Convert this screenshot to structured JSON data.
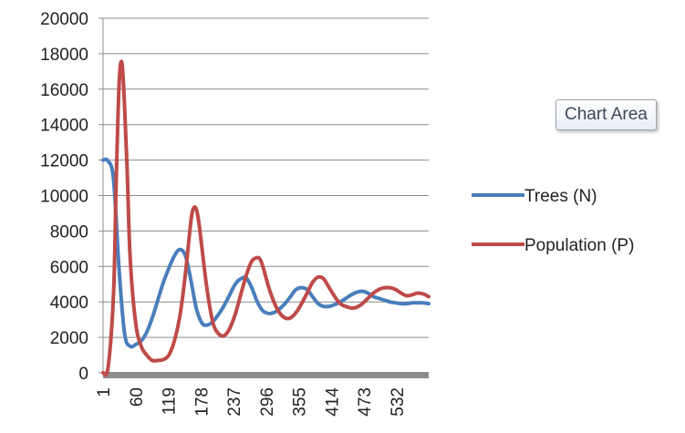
{
  "tooltip": {
    "text": "Chart Area"
  },
  "chart_data": {
    "type": "line",
    "ylim": [
      0,
      20000
    ],
    "yticks": [
      0,
      2000,
      4000,
      6000,
      8000,
      10000,
      12000,
      14000,
      16000,
      18000,
      20000
    ],
    "xticks": [
      "1",
      "60",
      "119",
      "178",
      "237",
      "296",
      "355",
      "414",
      "473",
      "532"
    ],
    "xlim": [
      1,
      590
    ],
    "grid": "horizontal",
    "legend_position": "right",
    "series": [
      {
        "name": "Trees (N)",
        "color": "#4a7ebb",
        "x": [
          1,
          10,
          20,
          30,
          40,
          50,
          60,
          70,
          80,
          90,
          100,
          110,
          120,
          130,
          140,
          150,
          160,
          170,
          180,
          190,
          200,
          210,
          220,
          230,
          240,
          250,
          260,
          270,
          280,
          290,
          300,
          310,
          320,
          330,
          340,
          350,
          360,
          370,
          380,
          390,
          400,
          410,
          420,
          430,
          440,
          450,
          460,
          470,
          480,
          490,
          500,
          510,
          520,
          530,
          540,
          550,
          560,
          570,
          580,
          590
        ],
        "values": [
          12000,
          11950,
          10900,
          5800,
          2200,
          1500,
          1600,
          1800,
          2300,
          3100,
          4100,
          5100,
          5900,
          6600,
          6950,
          6600,
          5200,
          3600,
          2800,
          2700,
          2900,
          3300,
          3800,
          4400,
          5000,
          5300,
          5350,
          4800,
          4000,
          3500,
          3350,
          3400,
          3600,
          3900,
          4300,
          4700,
          4800,
          4700,
          4300,
          3900,
          3750,
          3750,
          3850,
          4000,
          4200,
          4400,
          4550,
          4600,
          4500,
          4300,
          4200,
          4100,
          4000,
          3950,
          3900,
          3900,
          3950,
          3950,
          3950,
          3900
        ]
      },
      {
        "name": "Population (P)",
        "color": "#be4b48",
        "x": [
          1,
          10,
          20,
          25,
          30,
          35,
          40,
          45,
          50,
          60,
          70,
          80,
          90,
          100,
          110,
          120,
          130,
          140,
          150,
          160,
          165,
          170,
          175,
          180,
          190,
          200,
          210,
          220,
          230,
          240,
          250,
          260,
          270,
          280,
          285,
          290,
          300,
          310,
          320,
          330,
          340,
          350,
          360,
          370,
          380,
          390,
          400,
          410,
          420,
          430,
          440,
          450,
          460,
          470,
          480,
          490,
          500,
          510,
          520,
          530,
          540,
          550,
          560,
          570,
          580,
          590
        ],
        "values": [
          0,
          300,
          4500,
          11000,
          16300,
          17500,
          15000,
          11000,
          6500,
          2800,
          1500,
          1000,
          700,
          700,
          750,
          1000,
          1800,
          3200,
          5600,
          8600,
          9300,
          9200,
          8300,
          7000,
          4500,
          2800,
          2200,
          2100,
          2500,
          3300,
          4400,
          5500,
          6300,
          6500,
          6400,
          6000,
          4900,
          4000,
          3400,
          3100,
          3100,
          3400,
          3900,
          4500,
          5100,
          5400,
          5300,
          4800,
          4300,
          3900,
          3750,
          3650,
          3700,
          3900,
          4200,
          4500,
          4700,
          4800,
          4800,
          4700,
          4500,
          4350,
          4400,
          4500,
          4450,
          4300
        ]
      }
    ]
  }
}
